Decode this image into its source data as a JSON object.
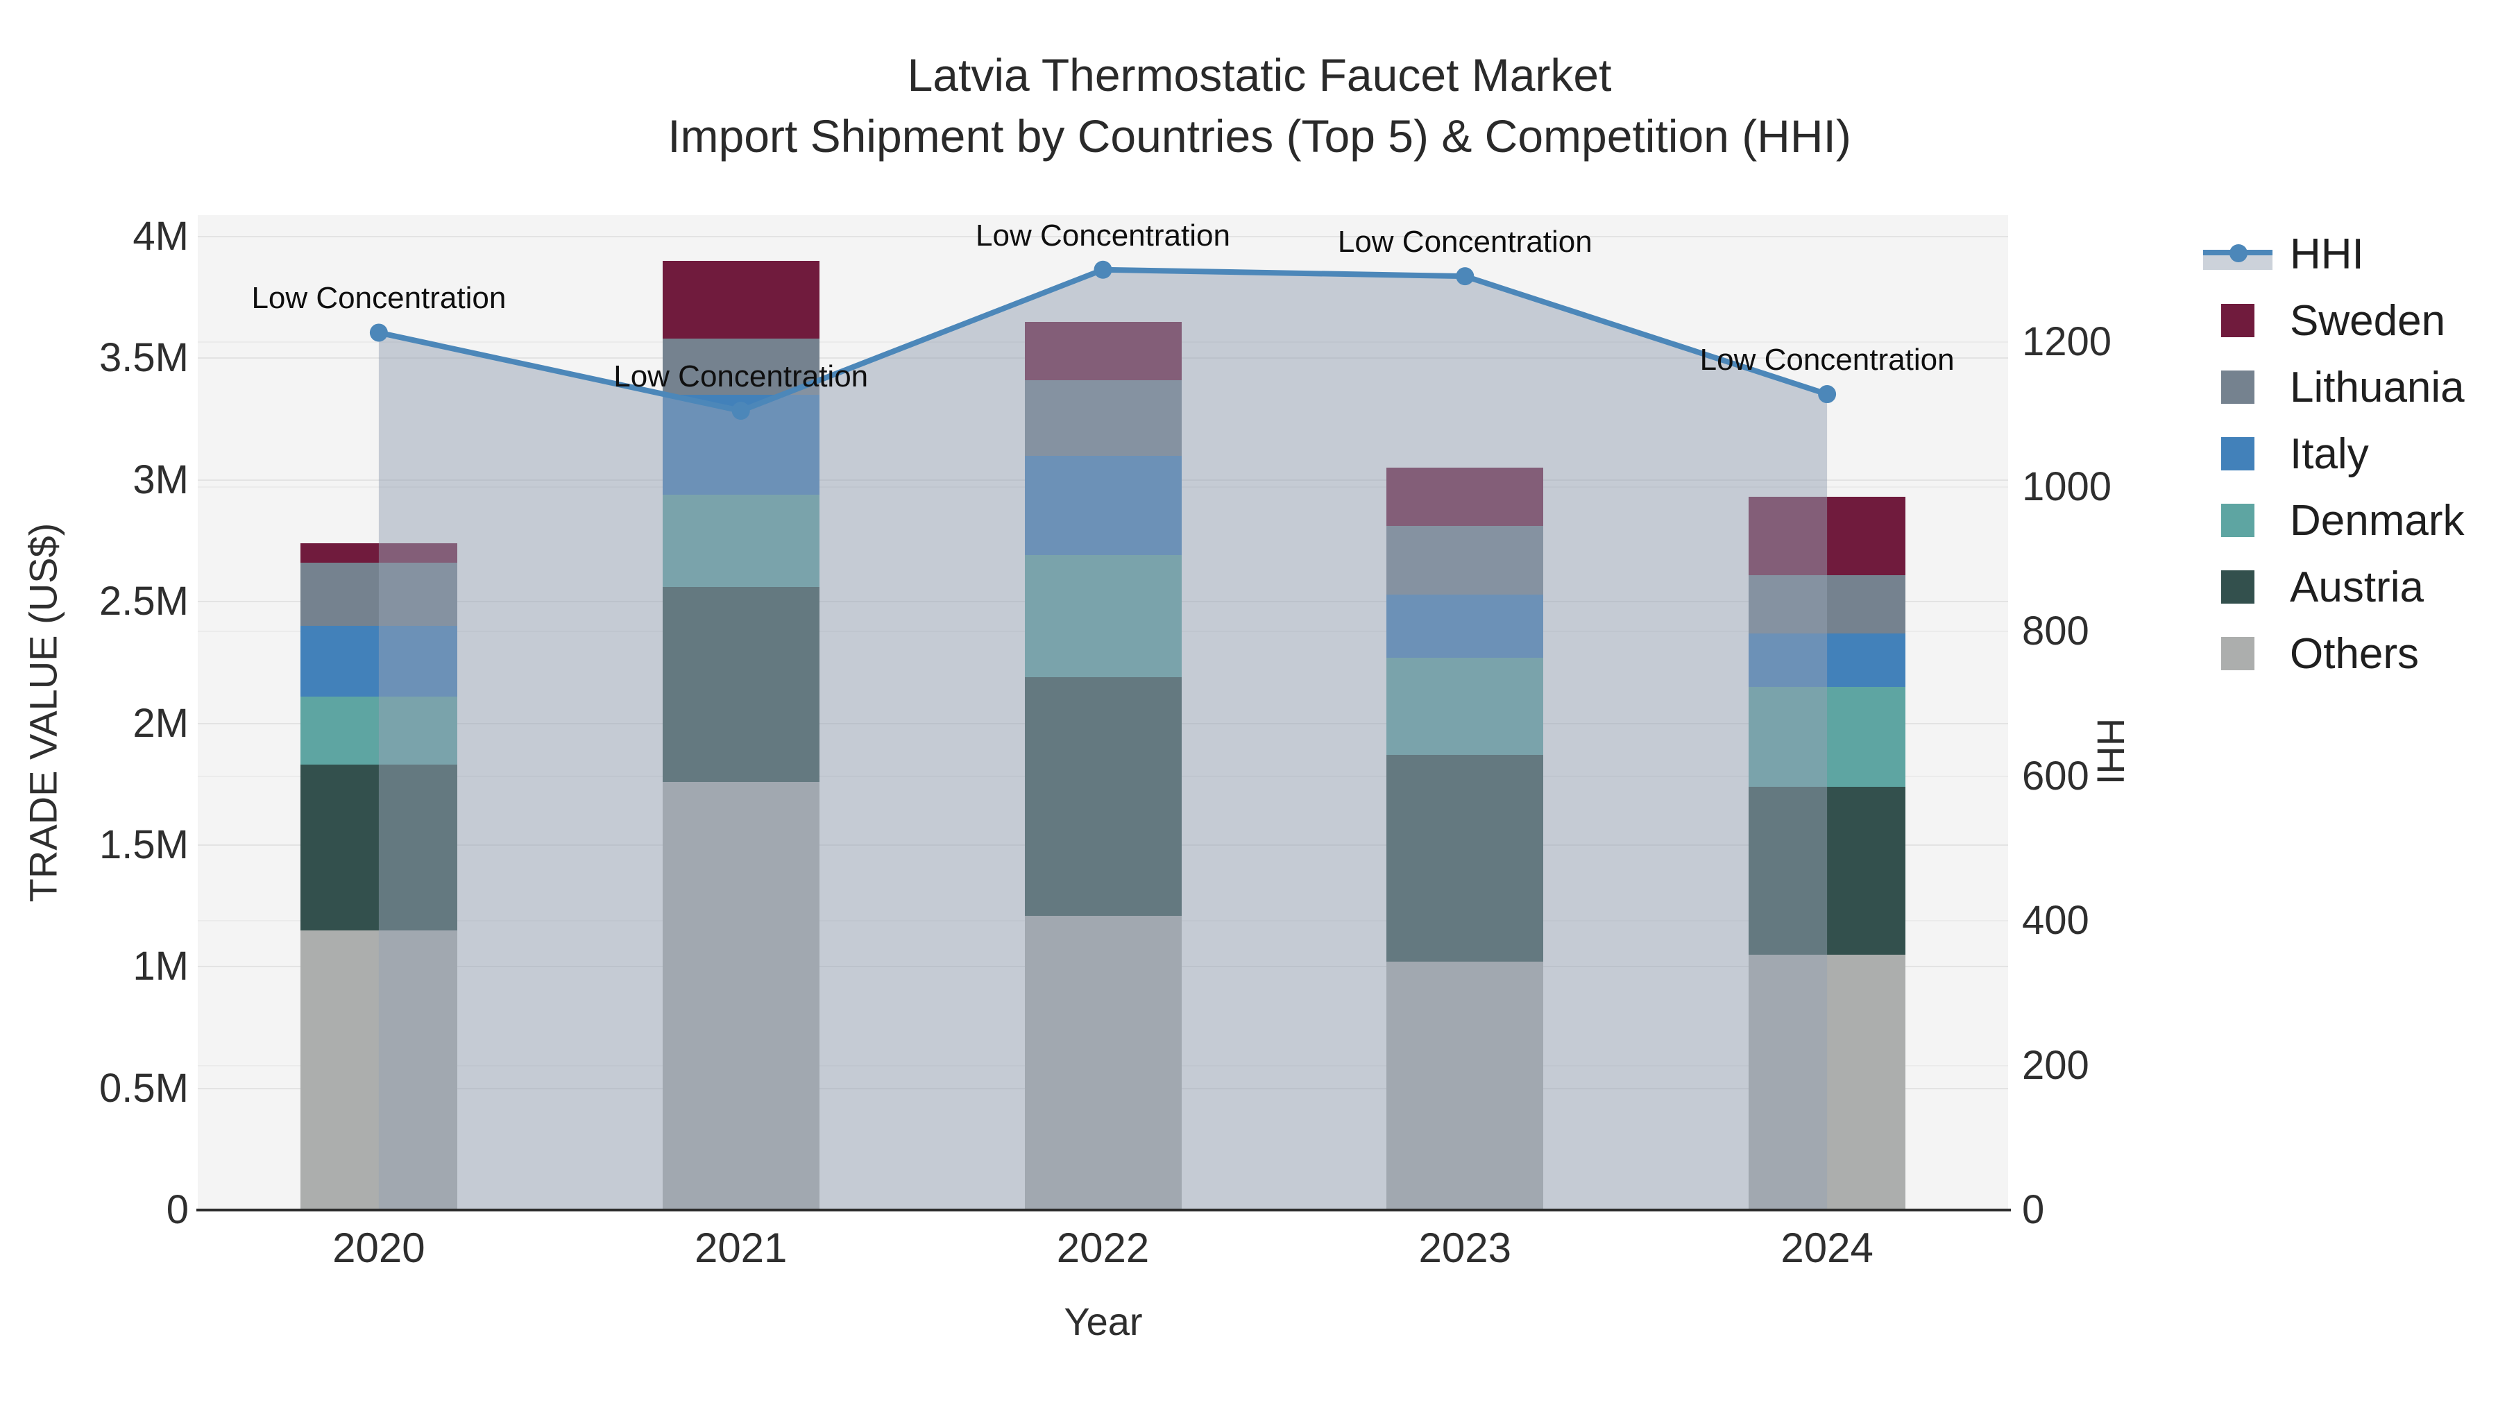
{
  "title": {
    "line1": "Latvia Thermostatic Faucet Market",
    "line2": "Import Shipment by Countries (Top 5) & Competition (HHI)"
  },
  "axes": {
    "x": {
      "title": "Year",
      "categories": [
        "2020",
        "2021",
        "2022",
        "2023",
        "2024"
      ]
    },
    "y_left": {
      "title": "TRADE VALUE (US$)",
      "ticks": [
        {
          "v": 0,
          "label": "0"
        },
        {
          "v": 0.5,
          "label": "0.5M"
        },
        {
          "v": 1,
          "label": "1M"
        },
        {
          "v": 1.5,
          "label": "1.5M"
        },
        {
          "v": 2,
          "label": "2M"
        },
        {
          "v": 2.5,
          "label": "2.5M"
        },
        {
          "v": 3,
          "label": "3M"
        },
        {
          "v": 3.5,
          "label": "3.5M"
        },
        {
          "v": 4,
          "label": "4M"
        }
      ],
      "range": [
        0,
        4.09
      ]
    },
    "y_right": {
      "title": "HHI",
      "ticks": [
        {
          "v": 0,
          "label": "0"
        },
        {
          "v": 200,
          "label": "200"
        },
        {
          "v": 400,
          "label": "400"
        },
        {
          "v": 600,
          "label": "600"
        },
        {
          "v": 800,
          "label": "800"
        },
        {
          "v": 1000,
          "label": "1000"
        },
        {
          "v": 1200,
          "label": "1200"
        }
      ],
      "range": [
        0,
        1376
      ]
    }
  },
  "chart_data": {
    "type": "combo-stacked-bar-line",
    "categories": [
      "2020",
      "2021",
      "2022",
      "2023",
      "2024"
    ],
    "unit": "US$ millions (left axis), HHI index (right axis)",
    "series": [
      {
        "name": "Sweden",
        "color": "#701B3D",
        "values": [
          0.08,
          0.32,
          0.24,
          0.24,
          0.32
        ]
      },
      {
        "name": "Lithuania",
        "color": "#75828F",
        "values": [
          0.26,
          0.23,
          0.31,
          0.28,
          0.24
        ]
      },
      {
        "name": "Italy",
        "color": "#4281BA",
        "values": [
          0.29,
          0.41,
          0.41,
          0.26,
          0.22
        ]
      },
      {
        "name": "Denmark",
        "color": "#5EA5A2",
        "values": [
          0.28,
          0.38,
          0.5,
          0.4,
          0.41
        ]
      },
      {
        "name": "Austria",
        "color": "#33504D",
        "values": [
          0.68,
          0.8,
          0.98,
          0.85,
          0.69
        ]
      },
      {
        "name": "Others",
        "color": "#ACAEAD",
        "values": [
          1.15,
          1.76,
          1.21,
          1.02,
          1.05
        ]
      }
    ],
    "stack_totals": [
      2.74,
      3.9,
      3.65,
      3.05,
      2.93
    ],
    "line": {
      "name": "HHI",
      "color": "#4C87B9",
      "area_fill": "rgba(150,162,180,0.5)",
      "values": [
        1213,
        1105,
        1300,
        1291,
        1128
      ],
      "annotations": [
        "Low Concentration",
        "Low Concentration",
        "Low Concentration",
        "Low Concentration",
        "Low Concentration"
      ]
    }
  },
  "legend": {
    "items": [
      {
        "label": "HHI",
        "type": "line",
        "color": "#4C87B9"
      },
      {
        "label": "Sweden",
        "type": "square",
        "color": "#701B3D"
      },
      {
        "label": "Lithuania",
        "type": "square",
        "color": "#75828F"
      },
      {
        "label": "Italy",
        "type": "square",
        "color": "#4281BA"
      },
      {
        "label": "Denmark",
        "type": "square",
        "color": "#5EA5A2"
      },
      {
        "label": "Austria",
        "type": "square",
        "color": "#33504D"
      },
      {
        "label": "Others",
        "type": "square",
        "color": "#ACAEAD"
      }
    ]
  }
}
